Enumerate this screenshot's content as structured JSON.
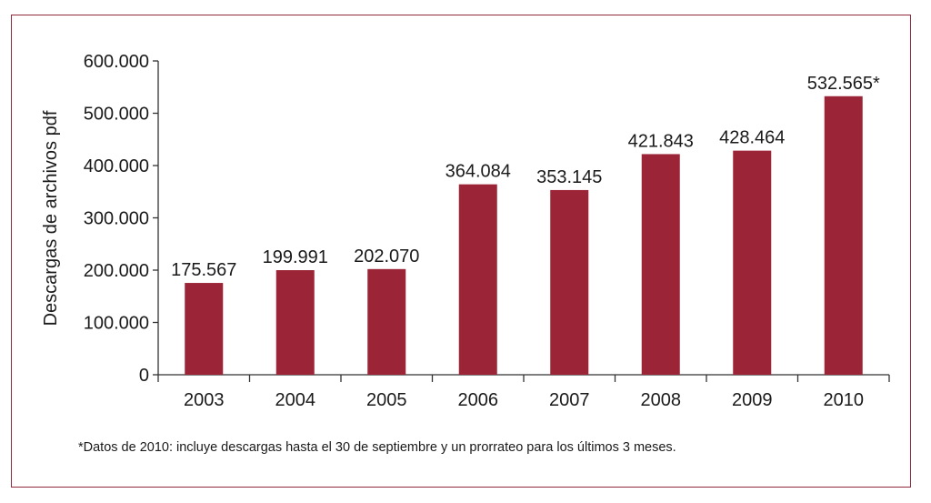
{
  "colors": {
    "bar": "#9b2536",
    "frame": "#8f2a3c",
    "axis": "#333333"
  },
  "chart_data": {
    "type": "bar",
    "title": "",
    "xlabel": "",
    "ylabel": "Descargas de archivos pdf",
    "ylim": [
      0,
      600000
    ],
    "yticks": [
      0,
      100000,
      200000,
      300000,
      400000,
      500000,
      600000
    ],
    "ytick_labels": [
      "0",
      "100.000",
      "200.000",
      "300.000",
      "400.000",
      "500.000",
      "600.000"
    ],
    "categories": [
      "2003",
      "2004",
      "2005",
      "2006",
      "2007",
      "2008",
      "2009",
      "2010"
    ],
    "values": [
      175567,
      199991,
      202070,
      364084,
      353145,
      421843,
      428464,
      532565
    ],
    "data_labels": [
      "175.567",
      "199.991",
      "202.070",
      "364.084",
      "353.145",
      "421.843",
      "428.464",
      "532.565*"
    ],
    "grid": false,
    "legend": "none"
  },
  "footnote": "*Datos de 2010: incluye descargas hasta el 30 de septiembre y un prorrateo para los últimos 3 meses."
}
